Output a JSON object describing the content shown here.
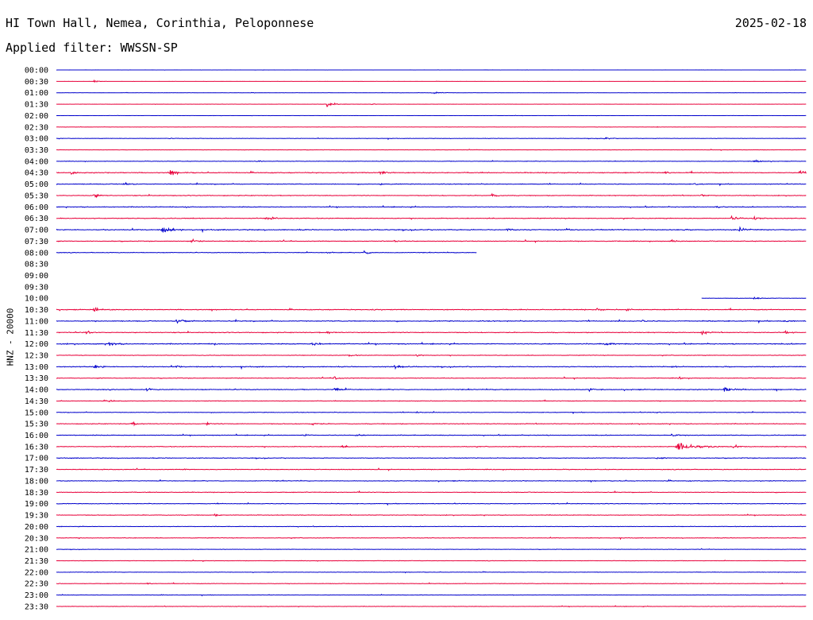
{
  "header": {
    "station": "HI Town Hall, Nemea, Corinthia, Peloponnese",
    "date": "2025-02-18",
    "filter": "Applied filter: WWSSN-SP"
  },
  "chart_data": {
    "type": "line",
    "title": "HI Town Hall, Nemea, Corinthia, Peloponnese",
    "date": "2025-02-18",
    "filter": "WWSSN-SP",
    "ylabel": "HNZ - 20000",
    "colors": {
      "odd_rows": "#0000cc",
      "even_rows": "#e8003a",
      "text": "#000000"
    },
    "grid": false,
    "row_minutes": 30,
    "rows": [
      {
        "time": "00:00",
        "activity": 0.1,
        "start": 0,
        "end": 1,
        "events": []
      },
      {
        "time": "00:30",
        "activity": 0.1,
        "start": 0,
        "end": 1,
        "events": [
          [
            0.05,
            2.5
          ]
        ]
      },
      {
        "time": "01:00",
        "activity": 0.15,
        "start": 0,
        "end": 1,
        "events": [
          [
            0.5,
            4
          ],
          [
            0.26,
            1.2
          ]
        ]
      },
      {
        "time": "01:30",
        "activity": 0.12,
        "start": 0,
        "end": 1,
        "events": [
          [
            0.36,
            5
          ],
          [
            0.42,
            1.2
          ]
        ]
      },
      {
        "time": "02:00",
        "activity": 0.15,
        "start": 0,
        "end": 1,
        "events": []
      },
      {
        "time": "02:30",
        "activity": 0.15,
        "start": 0,
        "end": 1,
        "events": [
          [
            0.8,
            1
          ]
        ]
      },
      {
        "time": "03:00",
        "activity": 0.3,
        "start": 0,
        "end": 1,
        "events": [
          [
            0.73,
            3
          ],
          [
            0.15,
            1
          ]
        ]
      },
      {
        "time": "03:30",
        "activity": 0.25,
        "start": 0,
        "end": 1,
        "events": []
      },
      {
        "time": "04:00",
        "activity": 0.35,
        "start": 0,
        "end": 1,
        "events": [
          [
            0.93,
            3.5
          ],
          [
            0.27,
            1.5
          ]
        ]
      },
      {
        "time": "04:30",
        "activity": 0.6,
        "start": 0,
        "end": 1,
        "events": [
          [
            0.15,
            5
          ],
          [
            0.43,
            4
          ],
          [
            0.99,
            4
          ],
          [
            0.02,
            2
          ],
          [
            0.81,
            2
          ]
        ]
      },
      {
        "time": "05:00",
        "activity": 0.5,
        "start": 0,
        "end": 1,
        "events": [
          [
            0.09,
            3.5
          ],
          [
            0.43,
            2
          ],
          [
            0.85,
            2
          ]
        ]
      },
      {
        "time": "05:30",
        "activity": 0.5,
        "start": 0,
        "end": 1,
        "events": [
          [
            0.05,
            3.5
          ],
          [
            0.58,
            3
          ],
          [
            0.86,
            2
          ]
        ]
      },
      {
        "time": "06:00",
        "activity": 0.55,
        "start": 0,
        "end": 1,
        "events": [
          [
            0.88,
            2.5
          ],
          [
            0.17,
            2
          ]
        ]
      },
      {
        "time": "06:30",
        "activity": 0.55,
        "start": 0,
        "end": 1,
        "events": [
          [
            0.28,
            4
          ],
          [
            0.9,
            3.5
          ],
          [
            0.93,
            3
          ]
        ]
      },
      {
        "time": "07:00",
        "activity": 0.65,
        "start": 0,
        "end": 1,
        "events": [
          [
            0.14,
            6
          ],
          [
            0.6,
            3
          ],
          [
            0.91,
            4
          ],
          [
            0.68,
            2
          ]
        ]
      },
      {
        "time": "07:30",
        "activity": 0.5,
        "start": 0,
        "end": 1,
        "events": [
          [
            0.82,
            3
          ],
          [
            0.18,
            3
          ],
          [
            0.45,
            2
          ]
        ]
      },
      {
        "time": "08:00",
        "activity": 0.45,
        "start": 0,
        "end": 0.56,
        "events": [
          [
            0.41,
            3.5
          ],
          [
            0.36,
            2.5
          ]
        ]
      },
      {
        "time": "08:30",
        "activity": 0,
        "start": 0,
        "end": 0,
        "events": []
      },
      {
        "time": "09:00",
        "activity": 0,
        "start": 0,
        "end": 0,
        "events": []
      },
      {
        "time": "09:30",
        "activity": 0,
        "start": 0,
        "end": 0,
        "events": []
      },
      {
        "time": "10:00",
        "activity": 0.3,
        "start": 0.86,
        "end": 1,
        "events": [
          [
            0.93,
            3
          ]
        ]
      },
      {
        "time": "10:30",
        "activity": 0.55,
        "start": 0,
        "end": 1,
        "events": [
          [
            0.05,
            4
          ],
          [
            0.42,
            2
          ],
          [
            0.72,
            2.5
          ],
          [
            0.76,
            2
          ]
        ]
      },
      {
        "time": "11:00",
        "activity": 0.6,
        "start": 0,
        "end": 1,
        "events": [
          [
            0.16,
            5
          ],
          [
            0.97,
            2.5
          ],
          [
            0.78,
            2
          ]
        ]
      },
      {
        "time": "11:30",
        "activity": 0.55,
        "start": 0,
        "end": 1,
        "events": [
          [
            0.04,
            3
          ],
          [
            0.36,
            2.5
          ],
          [
            0.86,
            3.5
          ],
          [
            0.97,
            2.5
          ]
        ]
      },
      {
        "time": "12:00",
        "activity": 0.65,
        "start": 0,
        "end": 1,
        "events": [
          [
            0.07,
            4
          ],
          [
            0.34,
            4
          ],
          [
            0.73,
            3.5
          ],
          [
            0.21,
            2
          ]
        ]
      },
      {
        "time": "12:30",
        "activity": 0.4,
        "start": 0,
        "end": 1,
        "events": [
          [
            0.39,
            2.5
          ],
          [
            0.48,
            2.5
          ]
        ]
      },
      {
        "time": "13:00",
        "activity": 0.6,
        "start": 0,
        "end": 1,
        "events": [
          [
            0.05,
            4
          ],
          [
            0.45,
            4.5
          ],
          [
            0.16,
            2
          ],
          [
            0.82,
            2
          ]
        ]
      },
      {
        "time": "13:30",
        "activity": 0.45,
        "start": 0,
        "end": 1,
        "events": [
          [
            0.37,
            3
          ],
          [
            0.83,
            2
          ]
        ]
      },
      {
        "time": "14:00",
        "activity": 0.6,
        "start": 0,
        "end": 1,
        "events": [
          [
            0.37,
            3.5
          ],
          [
            0.89,
            5
          ],
          [
            0.12,
            2.5
          ],
          [
            0.71,
            2.5
          ]
        ]
      },
      {
        "time": "14:30",
        "activity": 0.4,
        "start": 0,
        "end": 1,
        "events": [
          [
            0.07,
            2.5
          ]
        ]
      },
      {
        "time": "15:00",
        "activity": 0.4,
        "start": 0,
        "end": 1,
        "events": [
          [
            0.8,
            2
          ],
          [
            0.48,
            2
          ]
        ]
      },
      {
        "time": "15:30",
        "activity": 0.5,
        "start": 0,
        "end": 1,
        "events": [
          [
            0.1,
            3
          ],
          [
            0.34,
            3
          ],
          [
            0.2,
            2
          ]
        ]
      },
      {
        "time": "16:00",
        "activity": 0.5,
        "start": 0,
        "end": 1,
        "events": [
          [
            0.82,
            3
          ],
          [
            0.4,
            2
          ],
          [
            0.33,
            2
          ]
        ]
      },
      {
        "time": "16:30",
        "activity": 0.5,
        "start": 0,
        "end": 1,
        "events": [
          [
            0.826,
            12
          ],
          [
            0.9,
            3
          ],
          [
            0.38,
            2.5
          ]
        ]
      },
      {
        "time": "17:00",
        "activity": 0.5,
        "start": 0,
        "end": 1,
        "events": [
          [
            0.8,
            2
          ]
        ]
      },
      {
        "time": "17:30",
        "activity": 0.45,
        "start": 0,
        "end": 1,
        "events": [
          [
            0.17,
            2
          ]
        ]
      },
      {
        "time": "18:00",
        "activity": 0.5,
        "start": 0,
        "end": 1,
        "events": []
      },
      {
        "time": "18:30",
        "activity": 0.45,
        "start": 0,
        "end": 1,
        "events": []
      },
      {
        "time": "19:00",
        "activity": 0.45,
        "start": 0,
        "end": 1,
        "events": []
      },
      {
        "time": "19:30",
        "activity": 0.45,
        "start": 0,
        "end": 1,
        "events": [
          [
            0.21,
            2
          ]
        ]
      },
      {
        "time": "20:00",
        "activity": 0.35,
        "start": 0,
        "end": 1,
        "events": []
      },
      {
        "time": "20:30",
        "activity": 0.4,
        "start": 0,
        "end": 1,
        "events": []
      },
      {
        "time": "21:00",
        "activity": 0.3,
        "start": 0,
        "end": 1,
        "events": []
      },
      {
        "time": "21:30",
        "activity": 0.3,
        "start": 0,
        "end": 1,
        "events": []
      },
      {
        "time": "22:00",
        "activity": 0.3,
        "start": 0,
        "end": 1,
        "events": []
      },
      {
        "time": "22:30",
        "activity": 0.35,
        "start": 0,
        "end": 1,
        "events": [
          [
            0.12,
            1.5
          ]
        ]
      },
      {
        "time": "23:00",
        "activity": 0.3,
        "start": 0,
        "end": 1,
        "events": [
          [
            0.14,
            1.2
          ]
        ]
      },
      {
        "time": "23:30",
        "activity": 0.35,
        "start": 0,
        "end": 1,
        "events": []
      }
    ]
  }
}
